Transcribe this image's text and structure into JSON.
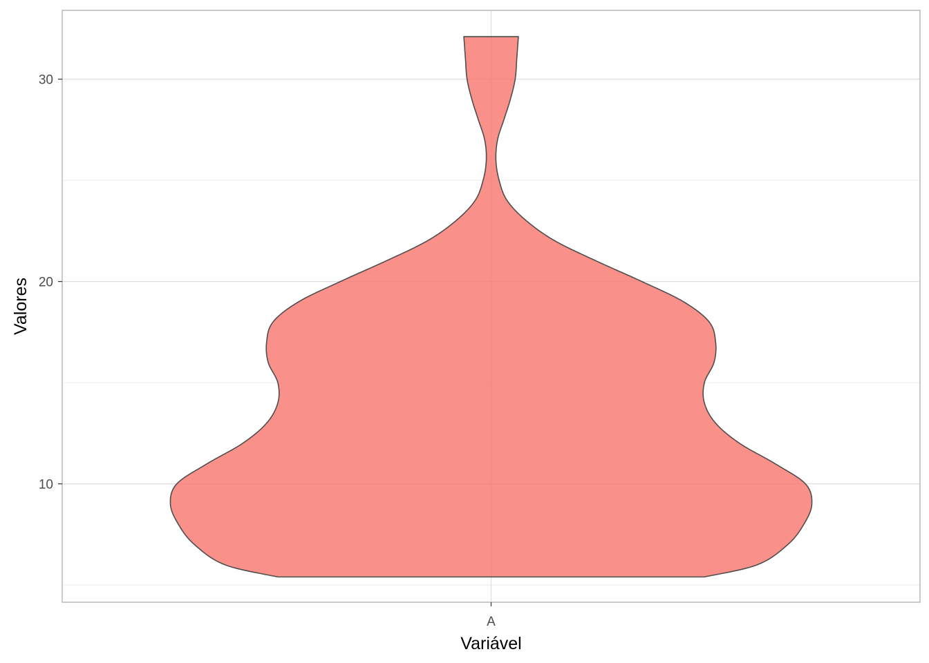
{
  "chart_data": {
    "type": "violin",
    "xlabel": "Variável",
    "ylabel": "Valores",
    "categories": [
      "A"
    ],
    "yticks": [
      10,
      20,
      30
    ],
    "ylim": [
      4.15,
      33.4
    ],
    "grid": true,
    "fill_color": "#F8766D",
    "outline_color": "#4d4d4d",
    "series": [
      {
        "category": "A",
        "y_min": 5.4,
        "y_max": 32.1,
        "density_profile": [
          [
            5.4,
            0.665
          ],
          [
            6.0,
            0.83
          ],
          [
            7.0,
            0.925
          ],
          [
            8.0,
            0.975
          ],
          [
            9.0,
            1.0
          ],
          [
            10.0,
            0.98
          ],
          [
            11.0,
            0.885
          ],
          [
            12.0,
            0.775
          ],
          [
            13.0,
            0.7
          ],
          [
            14.0,
            0.665
          ],
          [
            15.0,
            0.665
          ],
          [
            16.0,
            0.695
          ],
          [
            17.0,
            0.7
          ],
          [
            18.0,
            0.68
          ],
          [
            19.0,
            0.6
          ],
          [
            20.0,
            0.47
          ],
          [
            21.0,
            0.33
          ],
          [
            22.0,
            0.2
          ],
          [
            23.0,
            0.11
          ],
          [
            24.0,
            0.05
          ],
          [
            25.0,
            0.025
          ],
          [
            26.0,
            0.015
          ],
          [
            27.0,
            0.02
          ],
          [
            28.0,
            0.04
          ],
          [
            29.0,
            0.06
          ],
          [
            30.0,
            0.075
          ],
          [
            31.0,
            0.08
          ],
          [
            32.1,
            0.085
          ]
        ]
      }
    ]
  }
}
